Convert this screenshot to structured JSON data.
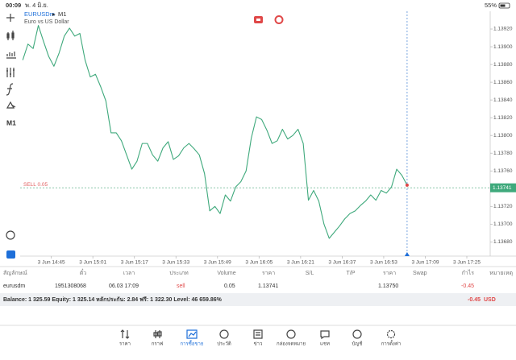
{
  "status_bar": {
    "time": "00:09",
    "date": "พ. 4 มิ.ย.",
    "battery": "55%"
  },
  "toolbar": {
    "timeframe": "M1"
  },
  "chart_data": {
    "type": "line",
    "symbol": "EURUSDm",
    "timeframe": "M1",
    "description": "Euro vs US Dollar",
    "color": "#3fa97c",
    "x": [
      "3 Jun 14:34",
      "3 Jun 14:36",
      "3 Jun 14:38",
      "3 Jun 14:40",
      "3 Jun 14:42",
      "3 Jun 14:44",
      "3 Jun 14:46",
      "3 Jun 14:48",
      "3 Jun 14:50",
      "3 Jun 14:52",
      "3 Jun 14:54",
      "3 Jun 14:56",
      "3 Jun 14:58",
      "3 Jun 15:00",
      "3 Jun 15:02",
      "3 Jun 15:04",
      "3 Jun 15:06",
      "3 Jun 15:08",
      "3 Jun 15:10",
      "3 Jun 15:12",
      "3 Jun 15:14",
      "3 Jun 15:16",
      "3 Jun 15:18",
      "3 Jun 15:20",
      "3 Jun 15:22",
      "3 Jun 15:24",
      "3 Jun 15:26",
      "3 Jun 15:28",
      "3 Jun 15:30",
      "3 Jun 15:32",
      "3 Jun 15:34",
      "3 Jun 15:36",
      "3 Jun 15:38",
      "3 Jun 15:40",
      "3 Jun 15:42",
      "3 Jun 15:44",
      "3 Jun 15:46",
      "3 Jun 15:48",
      "3 Jun 15:50",
      "3 Jun 15:52",
      "3 Jun 15:54",
      "3 Jun 15:56",
      "3 Jun 15:58",
      "3 Jun 16:00",
      "3 Jun 16:02",
      "3 Jun 16:04",
      "3 Jun 16:06",
      "3 Jun 16:08",
      "3 Jun 16:10",
      "3 Jun 16:12",
      "3 Jun 16:14",
      "3 Jun 16:16",
      "3 Jun 16:18",
      "3 Jun 16:20",
      "3 Jun 16:22",
      "3 Jun 16:24",
      "3 Jun 16:26",
      "3 Jun 16:28",
      "3 Jun 16:30",
      "3 Jun 16:32",
      "3 Jun 16:34",
      "3 Jun 16:36",
      "3 Jun 16:38",
      "3 Jun 16:40",
      "3 Jun 16:42",
      "3 Jun 16:44",
      "3 Jun 16:46",
      "3 Jun 16:48",
      "3 Jun 16:50",
      "3 Jun 16:52",
      "3 Jun 16:54",
      "3 Jun 16:56",
      "3 Jun 16:58",
      "3 Jun 17:00",
      "3 Jun 17:02"
    ],
    "values": [
      1.13885,
      1.13903,
      1.13898,
      1.13924,
      1.13906,
      1.13889,
      1.13878,
      1.13893,
      1.13912,
      1.13921,
      1.13912,
      1.13915,
      1.13885,
      1.13866,
      1.13869,
      1.13855,
      1.13839,
      1.13803,
      1.13803,
      1.13794,
      1.13778,
      1.13762,
      1.13771,
      1.13791,
      1.13791,
      1.13778,
      1.13771,
      1.13786,
      1.13793,
      1.13773,
      1.13777,
      1.13786,
      1.13791,
      1.13785,
      1.13778,
      1.13757,
      1.13715,
      1.1372,
      1.13712,
      1.13733,
      1.13726,
      1.13742,
      1.13748,
      1.1376,
      1.13797,
      1.13821,
      1.13818,
      1.13806,
      1.13791,
      1.13794,
      1.13807,
      1.13796,
      1.138,
      1.13807,
      1.13791,
      1.13727,
      1.13738,
      1.13726,
      1.137,
      1.13684,
      1.13691,
      1.13698,
      1.13706,
      1.13712,
      1.13715,
      1.13721,
      1.13726,
      1.13733,
      1.13727,
      1.13738,
      1.13735,
      1.13742,
      1.13762,
      1.13755,
      1.13744
    ],
    "current_price": 1.13741,
    "position": {
      "label": "SELL 0.05",
      "price": 1.13741
    },
    "xlim": [
      "3 Jun 14:33",
      "3 Jun 17:34"
    ],
    "xticks": [
      "3 Jun 14:45",
      "3 Jun 15:01",
      "3 Jun 15:17",
      "3 Jun 15:33",
      "3 Jun 15:49",
      "3 Jun 16:05",
      "3 Jun 16:21",
      "3 Jun 16:37",
      "3 Jun 16:53",
      "3 Jun 17:09",
      "3 Jun 17:25"
    ],
    "ylim": [
      1.13664,
      1.1394
    ],
    "yticks": [
      {
        "value": 1.1368,
        "label": "1.13680"
      },
      {
        "value": 1.137,
        "label": "1.13700"
      },
      {
        "value": 1.1372,
        "label": "1.13720"
      },
      {
        "value": 1.1376,
        "label": "1.13760"
      },
      {
        "value": 1.1378,
        "label": "1.13780"
      },
      {
        "value": 1.138,
        "label": "1.13800"
      },
      {
        "value": 1.1382,
        "label": "1.13820"
      },
      {
        "value": 1.1384,
        "label": "1.13840"
      },
      {
        "value": 1.1386,
        "label": "1.13860"
      },
      {
        "value": 1.1388,
        "label": "1.13880"
      },
      {
        "value": 1.139,
        "label": "1.13900"
      },
      {
        "value": 1.1392,
        "label": "1.13920"
      }
    ],
    "grid": false
  },
  "trades": {
    "columns": [
      "สัญลักษณ์",
      "ตั๋ว",
      "เวลา",
      "ประเภท",
      "Volume",
      "ราคา",
      "S/L",
      "T/P",
      "ราคา",
      "Swap",
      "กำไร",
      "หมายเหตุ"
    ],
    "rows": [
      [
        "eurusdm",
        "1951308068",
        "06.03 17:09",
        "sell",
        "0.05",
        "1.13741",
        null,
        null,
        "1.13750",
        null,
        "-0.45",
        null
      ]
    ]
  },
  "summary": {
    "text": "Balance: 1 325.59 Equity: 1 325.14 หลักประกัน: 2.84 ฟรี: 1 322.30 Level: 46 659.86%",
    "profit": "-0.45",
    "currency": "USD"
  },
  "tabs": [
    "ราคา",
    "กราฟ",
    "การซื้อขาย",
    "ประวัติ",
    "ข่าว",
    "กล่องจดหมาย",
    "แชท",
    "บัญชี",
    "การตั้งค่า"
  ],
  "active_tab": 2
}
